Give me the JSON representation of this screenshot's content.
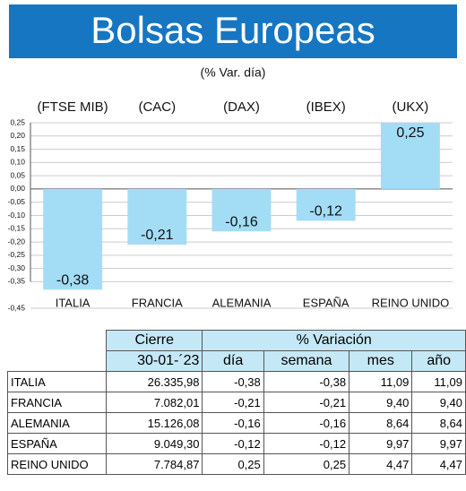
{
  "chart_data": {
    "type": "bar",
    "title": "Bolsas Europeas",
    "subtitle": "(% Var. día)",
    "categories": [
      "ITALIA",
      "FRANCIA",
      "ALEMANIA",
      "ESPAÑA",
      "REINO UNIDO"
    ],
    "indices": [
      "(FTSE MIB)",
      "(CAC)",
      "(DAX)",
      "(IBEX)",
      "(UKX)"
    ],
    "values": [
      -0.38,
      -0.21,
      -0.16,
      -0.12,
      0.25
    ],
    "value_labels": [
      "-0,38",
      "-0,21",
      "-0,16",
      "-0,12",
      "0,25"
    ],
    "color": "#a3ddf5",
    "ylim": [
      -0.45,
      0.25
    ],
    "yticks": [
      {
        "value": 0.25,
        "label": "0,25"
      },
      {
        "value": 0.2,
        "label": "0,20"
      },
      {
        "value": 0.15,
        "label": "0,15"
      },
      {
        "value": 0.1,
        "label": "0,10"
      },
      {
        "value": 0.05,
        "label": "0,05"
      },
      {
        "value": 0,
        "label": "0,00"
      },
      {
        "value": -0.05,
        "label": "-0,05"
      },
      {
        "value": -0.1,
        "label": "-0,10"
      },
      {
        "value": -0.15,
        "label": "-0,15"
      },
      {
        "value": -0.2,
        "label": "-0,20"
      },
      {
        "value": -0.25,
        "label": "-0,25"
      },
      {
        "value": -0.3,
        "label": "-0,30"
      },
      {
        "value": -0.35,
        "label": "-0,35"
      },
      {
        "value": -0.45,
        "label": "-0,45"
      }
    ],
    "grid": true
  },
  "table": {
    "header": [
      "Cierre",
      "% Variación"
    ],
    "subheader": [
      "30-01-´23",
      "día",
      "semana",
      "mes",
      "año"
    ],
    "rows": [
      [
        "ITALIA",
        "26.335,98",
        "-0,38",
        "-0,38",
        "11,09",
        "11,09"
      ],
      [
        "FRANCIA",
        "7.082,01",
        "-0,21",
        "-0,21",
        "9,40",
        "9,40"
      ],
      [
        "ALEMANIA",
        "15.126,08",
        "-0,16",
        "-0,16",
        "8,64",
        "8,64"
      ],
      [
        "ESPAÑA",
        "9.049,30",
        "-0,12",
        "-0,12",
        "9,97",
        "9,97"
      ],
      [
        "REINO UNIDO",
        "7.784,87",
        "0,25",
        "0,25",
        "4,47",
        "4,47"
      ]
    ]
  }
}
